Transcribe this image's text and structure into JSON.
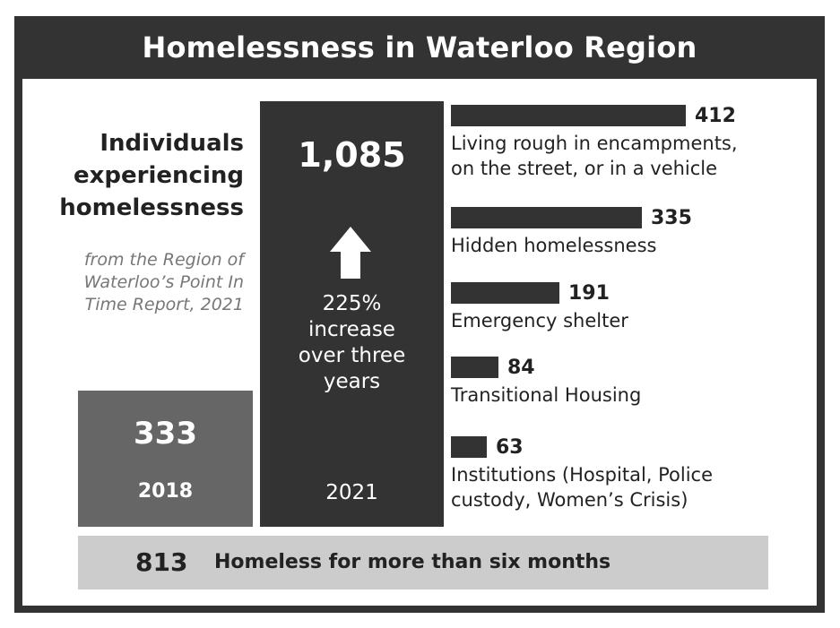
{
  "title": "Homelessness in Waterloo Region",
  "heading": {
    "line1": "Individuals",
    "line2": "experiencing",
    "line3": "homelessness"
  },
  "source": {
    "line1": "from the Region of",
    "line2": "Waterloo’s Point In",
    "line3": "Time Report, 2021"
  },
  "increase": {
    "line1": "225%",
    "line2": "increase",
    "line3": "over three",
    "line4": "years"
  },
  "footer": {
    "value": "813",
    "label": "Homeless for more than six months"
  },
  "colors": {
    "dark": "#333333",
    "mid": "#666666",
    "light": "#cccccc"
  },
  "chart_data": [
    {
      "type": "bar",
      "categories": [
        "2018",
        "2021"
      ],
      "values": [
        333,
        1085
      ],
      "value_labels": [
        "333",
        "1,085"
      ]
    },
    {
      "type": "bar",
      "orientation": "horizontal",
      "categories": [
        "Living rough in encampments, on the street, or in a vehicle",
        "Hidden homelessness",
        "Emergency shelter",
        "Transitional Housing",
        "Institutions (Hospital, Police custody, Women’s Crisis)"
      ],
      "category_lines": [
        [
          "Living rough in encampments,",
          "on the street, or in a vehicle"
        ],
        [
          "Hidden homelessness"
        ],
        [
          "Emergency shelter"
        ],
        [
          "Transitional Housing"
        ],
        [
          "Institutions (Hospital, Police",
          "custody, Women’s Crisis)"
        ]
      ],
      "values": [
        412,
        335,
        191,
        84,
        63
      ],
      "value_labels": [
        "412",
        "335",
        "191",
        "84",
        "63"
      ]
    }
  ]
}
